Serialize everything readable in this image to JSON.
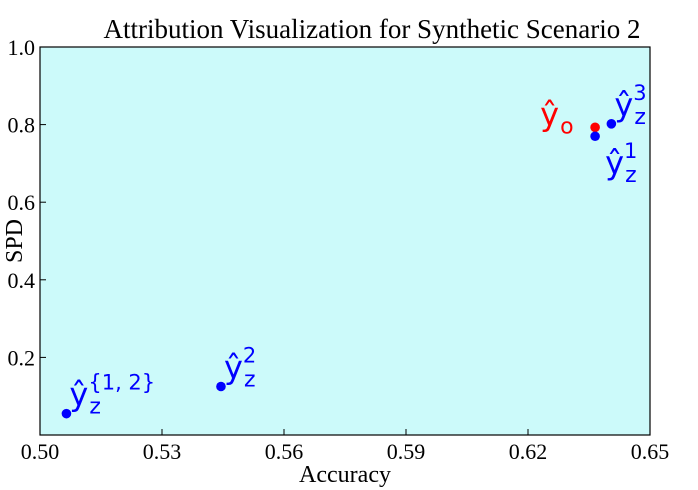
{
  "chart_data": {
    "type": "scatter",
    "title": "Attribution Visualization for Synthetic Scenario 2",
    "xlabel": "Accuracy",
    "ylabel": "SPD",
    "xlim": [
      0.5,
      0.65
    ],
    "ylim": [
      0.0,
      1.0
    ],
    "xticks": [
      "0.50",
      "0.53",
      "0.56",
      "0.59",
      "0.62",
      "0.65"
    ],
    "xtick_values": [
      0.5,
      0.53,
      0.56,
      0.59,
      0.62,
      0.65
    ],
    "yticks": [
      "0.2",
      "0.4",
      "0.6",
      "0.8",
      "1.0"
    ],
    "ytick_values": [
      0.2,
      0.4,
      0.6,
      0.8,
      1.0
    ],
    "grid": false,
    "background_color": "#ccfafa",
    "points": [
      {
        "x": 0.6365,
        "y": 0.793,
        "color": "#ff0000",
        "base": "ŷ",
        "sub": "o",
        "sup": "",
        "label_pos": "left"
      },
      {
        "x": 0.6365,
        "y": 0.77,
        "color": "#0000ff",
        "base": "ŷ",
        "sub": "z",
        "sup": "1",
        "label_pos": "below-right"
      },
      {
        "x": 0.6405,
        "y": 0.802,
        "color": "#0000ff",
        "base": "ŷ",
        "sub": "z",
        "sup": "3",
        "label_pos": "right"
      },
      {
        "x": 0.5445,
        "y": 0.125,
        "color": "#0000ff",
        "base": "ŷ",
        "sub": "z",
        "sup": "2",
        "label_pos": "right"
      },
      {
        "x": 0.5065,
        "y": 0.055,
        "color": "#0000ff",
        "base": "ŷ",
        "sub": "z",
        "sup": "{1, 2}",
        "label_pos": "right"
      }
    ]
  }
}
